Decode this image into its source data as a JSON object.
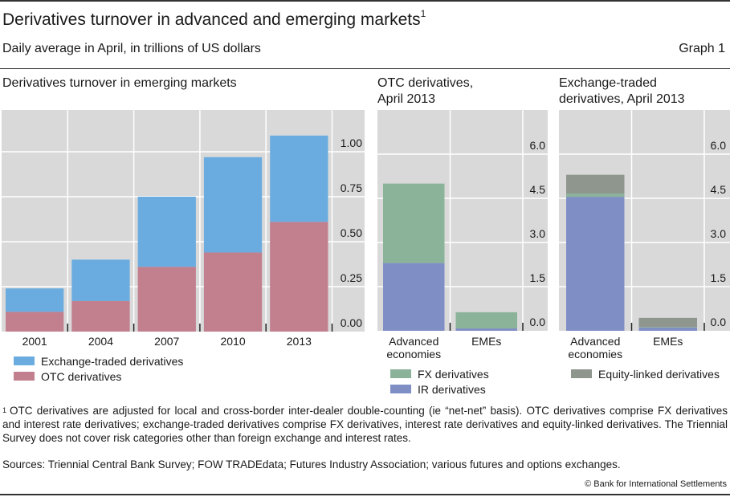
{
  "header": {
    "title": "Derivatives turnover in advanced and emerging markets",
    "title_footnote_marker": "1",
    "subtitle": "Daily average in April, in trillions of US dollars",
    "graph_number": "Graph 1"
  },
  "colors": {
    "plot_bg": "#d9d9d9",
    "exchange_traded": "#6aace0",
    "otc": "#c27f8e",
    "fx": "#8ab39a",
    "ir": "#808ec6",
    "equity": "#8f968e"
  },
  "chart_data": [
    {
      "type": "bar",
      "stacked": true,
      "title": "Derivatives turnover in emerging markets",
      "categories": [
        "2001",
        "2004",
        "2007",
        "2010",
        "2013"
      ],
      "series": [
        {
          "name": "OTC derivatives",
          "color_key": "otc",
          "values": [
            0.11,
            0.17,
            0.36,
            0.44,
            0.61
          ]
        },
        {
          "name": "Exchange-traded derivatives",
          "color_key": "exchange_traded",
          "values": [
            0.13,
            0.23,
            0.39,
            0.53,
            0.48
          ]
        }
      ],
      "yticks": [
        "0.00",
        "0.25",
        "0.50",
        "0.75",
        "1.00"
      ],
      "ytick_values": [
        0,
        0.25,
        0.5,
        0.75,
        1.0
      ],
      "ylim": [
        0,
        1.2
      ],
      "y_axis_side": "right",
      "grid": true,
      "legend": [
        {
          "label": "Exchange-traded derivatives",
          "color_key": "exchange_traded"
        },
        {
          "label": "OTC derivatives",
          "color_key": "otc"
        }
      ],
      "legend_position": "bottom"
    },
    {
      "type": "bar",
      "stacked": true,
      "title": "OTC derivatives, April 2013",
      "title_lines": [
        "OTC derivatives,",
        "April 2013"
      ],
      "categories": [
        "Advanced economies",
        "EMEs"
      ],
      "category_lines": [
        [
          "Advanced",
          "economies"
        ],
        [
          "EMEs"
        ]
      ],
      "series": [
        {
          "name": "IR derivatives",
          "color_key": "ir",
          "values": [
            2.3,
            0.08
          ]
        },
        {
          "name": "FX derivatives",
          "color_key": "fx",
          "values": [
            2.7,
            0.55
          ]
        }
      ],
      "yticks": [
        "0.0",
        "1.5",
        "3.0",
        "4.5",
        "6.0"
      ],
      "ytick_values": [
        0,
        1.5,
        3.0,
        4.5,
        6.0
      ],
      "ylim": [
        0,
        7.5
      ],
      "y_axis_side": "right",
      "grid": true,
      "legend": [
        {
          "label": "FX derivatives",
          "color_key": "fx"
        },
        {
          "label": "IR derivatives",
          "color_key": "ir"
        }
      ],
      "legend_position": "bottom"
    },
    {
      "type": "bar",
      "stacked": true,
      "title": "Exchange-traded derivatives, April 2013",
      "title_lines": [
        "Exchange-traded",
        "derivatives, April 2013"
      ],
      "categories": [
        "Advanced economies",
        "EMEs"
      ],
      "category_lines": [
        [
          "Advanced",
          "economies"
        ],
        [
          "EMEs"
        ]
      ],
      "series": [
        {
          "name": "IR derivatives",
          "color_key": "ir",
          "values": [
            4.55,
            0.11
          ]
        },
        {
          "name": "FX derivatives",
          "color_key": "fx",
          "values": [
            0.11,
            0.02
          ]
        },
        {
          "name": "Equity-linked derivatives",
          "color_key": "equity",
          "values": [
            0.64,
            0.31
          ]
        }
      ],
      "yticks": [
        "0.0",
        "1.5",
        "3.0",
        "4.5",
        "6.0"
      ],
      "ytick_values": [
        0,
        1.5,
        3.0,
        4.5,
        6.0
      ],
      "ylim": [
        0,
        7.5
      ],
      "y_axis_side": "right",
      "grid": true,
      "legend": [
        {
          "label": "Equity-linked derivatives",
          "color_key": "equity"
        }
      ],
      "legend_position": "bottom"
    }
  ],
  "footnote": {
    "marker": "1",
    "text": "OTC derivatives are adjusted for local and cross-border inter-dealer double-counting (ie “net-net” basis). OTC derivatives comprise FX derivatives and interest rate derivatives; exchange-traded derivatives comprise FX derivatives, interest rate derivatives and equity-linked derivatives. The Triennial Survey does not cover risk categories other than foreign exchange and interest rates."
  },
  "sources": "Sources: Triennial Central Bank Survey; FOW TRADEdata; Futures Industry Association; various futures and options exchanges.",
  "copyright": "© Bank for International Settlements"
}
